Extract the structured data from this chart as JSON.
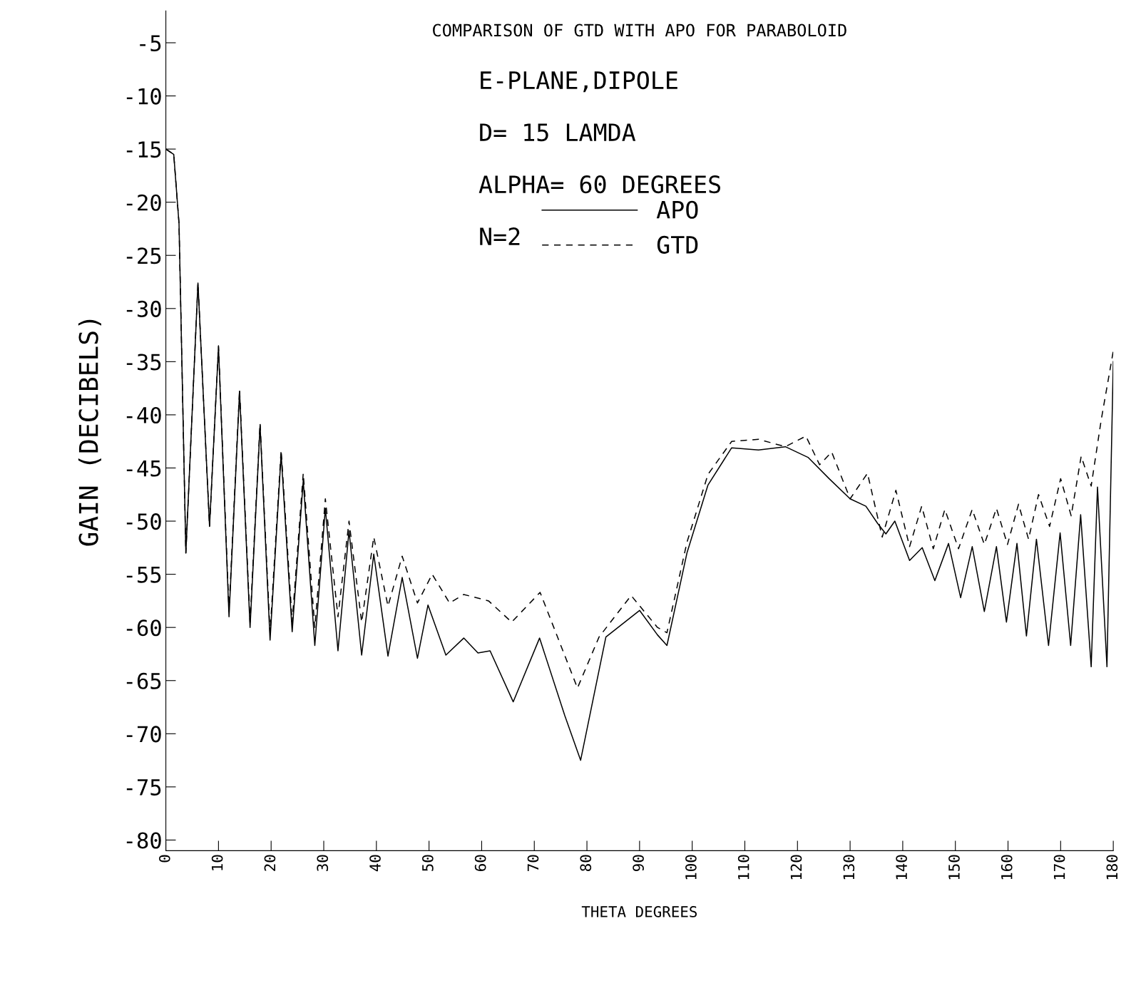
{
  "chart_data": {
    "type": "line",
    "title": "COMPARISON OF GTD WITH APO FOR PARABOLOID",
    "xlabel": "THETA DEGREES",
    "ylabel": "GAIN (DECIBELS)",
    "annotations": [
      "E-PLANE,DIPOLE",
      "D= 15 LAMDA",
      "ALPHA= 60 DEGREES",
      "N=2"
    ],
    "xlim": [
      0,
      180
    ],
    "xticks": [
      0,
      10,
      20,
      30,
      40,
      50,
      60,
      70,
      80,
      90,
      100,
      110,
      120,
      130,
      140,
      150,
      160,
      170,
      180
    ],
    "ylim": [
      -81,
      -2
    ],
    "yticks": [
      -5,
      -10,
      -15,
      -20,
      -25,
      -30,
      -35,
      -40,
      -45,
      -50,
      -55,
      -60,
      -65,
      -70,
      -75,
      -80
    ],
    "grid": false,
    "legend": "top",
    "marker": "none",
    "series": [
      {
        "name": "APO",
        "color": "#000000",
        "line_style": "solid",
        "x": [
          0,
          1.5,
          2.5,
          3.8,
          6.1,
          8.3,
          10.0,
          12.0,
          14.0,
          16.0,
          17.9,
          19.8,
          21.9,
          24.0,
          26.1,
          28.3,
          30.3,
          32.7,
          34.8,
          37.2,
          39.5,
          42.2,
          44.9,
          47.8,
          49.8,
          53.2,
          56.6,
          59.3,
          61.6,
          66,
          71,
          75.8,
          78.8,
          83.6,
          90,
          93.4,
          95.2,
          99,
          103,
          107.5,
          112.6,
          117.7,
          122,
          126,
          130,
          133,
          135.2,
          136.8,
          138.5,
          141.3,
          143.7,
          146.1,
          148.7,
          151,
          153.2,
          155.5,
          157.8,
          159.7,
          161.7,
          163.5,
          165.4,
          167.7,
          169.9,
          171.9,
          173.8,
          175.8,
          177.0,
          178.8,
          180
        ],
        "values": [
          -15,
          -15.5,
          -22,
          -53,
          -27.6,
          -50.5,
          -33.6,
          -59,
          -37.8,
          -60,
          -41,
          -61.2,
          -43.7,
          -60.4,
          -46.2,
          -61.7,
          -48.8,
          -62.2,
          -50.9,
          -62.6,
          -53.1,
          -62.7,
          -55.3,
          -62.9,
          -57.9,
          -62.6,
          -61,
          -62.4,
          -62.2,
          -67,
          -61,
          -68.3,
          -72.5,
          -60.9,
          -58.4,
          -60.7,
          -61.7,
          -53,
          -46.6,
          -43.1,
          -43.3,
          -43.0,
          -44,
          -46,
          -47.9,
          -48.6,
          -50.2,
          -51.2,
          -50,
          -53.7,
          -52.5,
          -55.6,
          -52.1,
          -57.2,
          -52.4,
          -58.5,
          -52.4,
          -59.5,
          -52.1,
          -60.8,
          -51.7,
          -61.7,
          -51.1,
          -61.7,
          -49.4,
          -63.7,
          -46.8,
          -63.7,
          -35
        ]
      },
      {
        "name": "GTD",
        "color": "#000000",
        "line_style": "dashed",
        "x": [
          0,
          1.5,
          2.5,
          3.8,
          6.1,
          8.3,
          10.0,
          12.0,
          14.0,
          16.0,
          17.9,
          19.8,
          21.9,
          24.0,
          26.1,
          28.3,
          30.3,
          32.7,
          34.8,
          37.2,
          39.5,
          42.2,
          44.9,
          47.8,
          50.6,
          53.9,
          56.6,
          61.3,
          65.7,
          71.1,
          78.2,
          82.3,
          88.4,
          93.4,
          95.2,
          99,
          103,
          107.5,
          112.6,
          117.7,
          121.6,
          124.2,
          126.5,
          130,
          133.3,
          136.1,
          138.7,
          141.3,
          143.6,
          145.8,
          148.0,
          150.6,
          153.2,
          155.5,
          157.8,
          159.9,
          162.0,
          163.9,
          165.8,
          167.9,
          170.0,
          172.0,
          173.9,
          175.8,
          177.7,
          180
        ],
        "values": [
          -15,
          -15.5,
          -22,
          -53,
          -27.6,
          -50.5,
          -33.5,
          -58.5,
          -37.6,
          -59.5,
          -40.8,
          -60.5,
          -43.3,
          -59.5,
          -45.5,
          -60,
          -47.9,
          -59,
          -50.0,
          -59.5,
          -51.5,
          -58,
          -53.3,
          -57.7,
          -55,
          -57.7,
          -56.9,
          -57.5,
          -59.5,
          -56.7,
          -65.7,
          -60.9,
          -57.0,
          -60.0,
          -60.5,
          -52,
          -45.6,
          -42.5,
          -42.3,
          -43.0,
          -42.0,
          -44.7,
          -43.5,
          -47.9,
          -45.5,
          -51.5,
          -47.1,
          -52.4,
          -48.6,
          -52.6,
          -48.9,
          -52.6,
          -48.9,
          -52.2,
          -48.8,
          -52.2,
          -48.4,
          -51.7,
          -47.5,
          -50.5,
          -46.0,
          -49.5,
          -43.9,
          -46.7,
          -40.5,
          -34
        ]
      }
    ]
  }
}
